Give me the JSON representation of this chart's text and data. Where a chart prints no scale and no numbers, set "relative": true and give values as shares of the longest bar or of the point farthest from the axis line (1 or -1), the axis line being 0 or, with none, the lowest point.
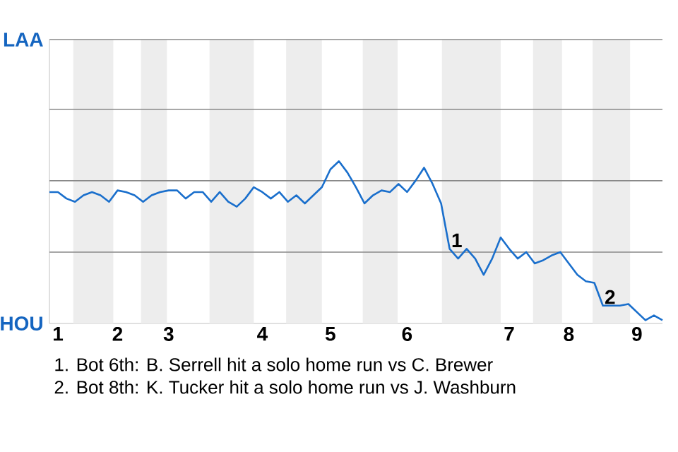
{
  "chart_data": {
    "type": "line",
    "relative": true,
    "categories": [
      null,
      "1",
      null,
      null,
      null,
      null,
      null,
      null,
      "2",
      null,
      null,
      null,
      null,
      null,
      "3",
      null,
      null,
      null,
      null,
      null,
      null,
      null,
      null,
      null,
      null,
      "4",
      null,
      null,
      null,
      null,
      null,
      null,
      null,
      "5",
      null,
      null,
      null,
      null,
      null,
      null,
      null,
      null,
      "6",
      null,
      null,
      null,
      null,
      null,
      null,
      null,
      null,
      null,
      null,
      null,
      "7",
      null,
      null,
      null,
      null,
      null,
      null,
      "8",
      null,
      null,
      null,
      null,
      null,
      null,
      null,
      "9",
      null,
      null,
      null
    ],
    "series": [
      {
        "color": "#1a6fcc",
        "values": [
          0.81,
          0.81,
          0.77,
          0.75,
          0.79,
          0.81,
          0.79,
          0.75,
          0.82,
          0.81,
          0.79,
          0.75,
          0.79,
          0.81,
          0.82,
          0.82,
          0.77,
          0.81,
          0.81,
          0.75,
          0.81,
          0.75,
          0.72,
          0.77,
          0.84,
          0.81,
          0.77,
          0.81,
          0.75,
          0.79,
          0.74,
          0.79,
          0.84,
          0.95,
          1,
          0.93,
          0.84,
          0.74,
          0.79,
          0.82,
          0.81,
          0.86,
          0.81,
          0.88,
          0.96,
          0.86,
          0.74,
          0.46,
          0.4,
          0.46,
          0.4,
          0.3,
          0.4,
          0.53,
          0.46,
          0.4,
          0.44,
          0.37,
          0.39,
          0.42,
          0.44,
          0.37,
          0.3,
          0.26,
          0.25,
          0.11,
          0.11,
          0.11,
          0.12,
          0.07,
          0.02,
          0.05,
          0.02
        ]
      }
    ],
    "ref_lines": [
      {
        "axis": "y",
        "value": 0.44,
        "color": "#888888"
      },
      {
        "axis": "y",
        "value": 0.88,
        "color": "#888888"
      },
      {
        "axis": "y",
        "value": 1.32,
        "color": "#888888"
      },
      {
        "axis": "y",
        "value": 1.75,
        "color": "#888888"
      }
    ],
    "annotations": [
      "LAA",
      "HOU",
      {
        "text": "1",
        "y": 0.46
      },
      {
        "text": "2",
        "y": 0.11
      },
      "1. Bot 6th: B. Serrell hit a solo home run vs C. Brewer",
      "2. Bot 8th: K. Tucker hit a solo home run vs J. Washburn"
    ]
  }
}
